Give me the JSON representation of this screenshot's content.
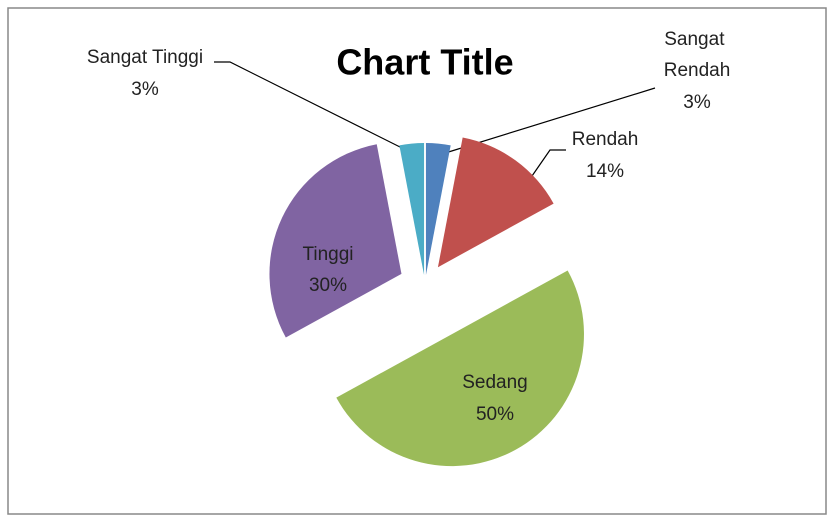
{
  "chart_data": {
    "type": "pie",
    "title": "Chart Title",
    "categories": [
      "Sangat Rendah",
      "Rendah",
      "Sedang",
      "Tinggi",
      "Sangat Tinggi"
    ],
    "values": [
      3,
      14,
      50,
      30,
      3
    ],
    "value_labels": [
      "3%",
      "14%",
      "50%",
      "30%",
      "3%"
    ],
    "colors": [
      "#4f81bd",
      "#c0504d",
      "#9bbb59",
      "#8064a2",
      "#4bacc6"
    ],
    "start_angle": 0,
    "direction": "clockwise",
    "exploded": true,
    "legend": false
  }
}
